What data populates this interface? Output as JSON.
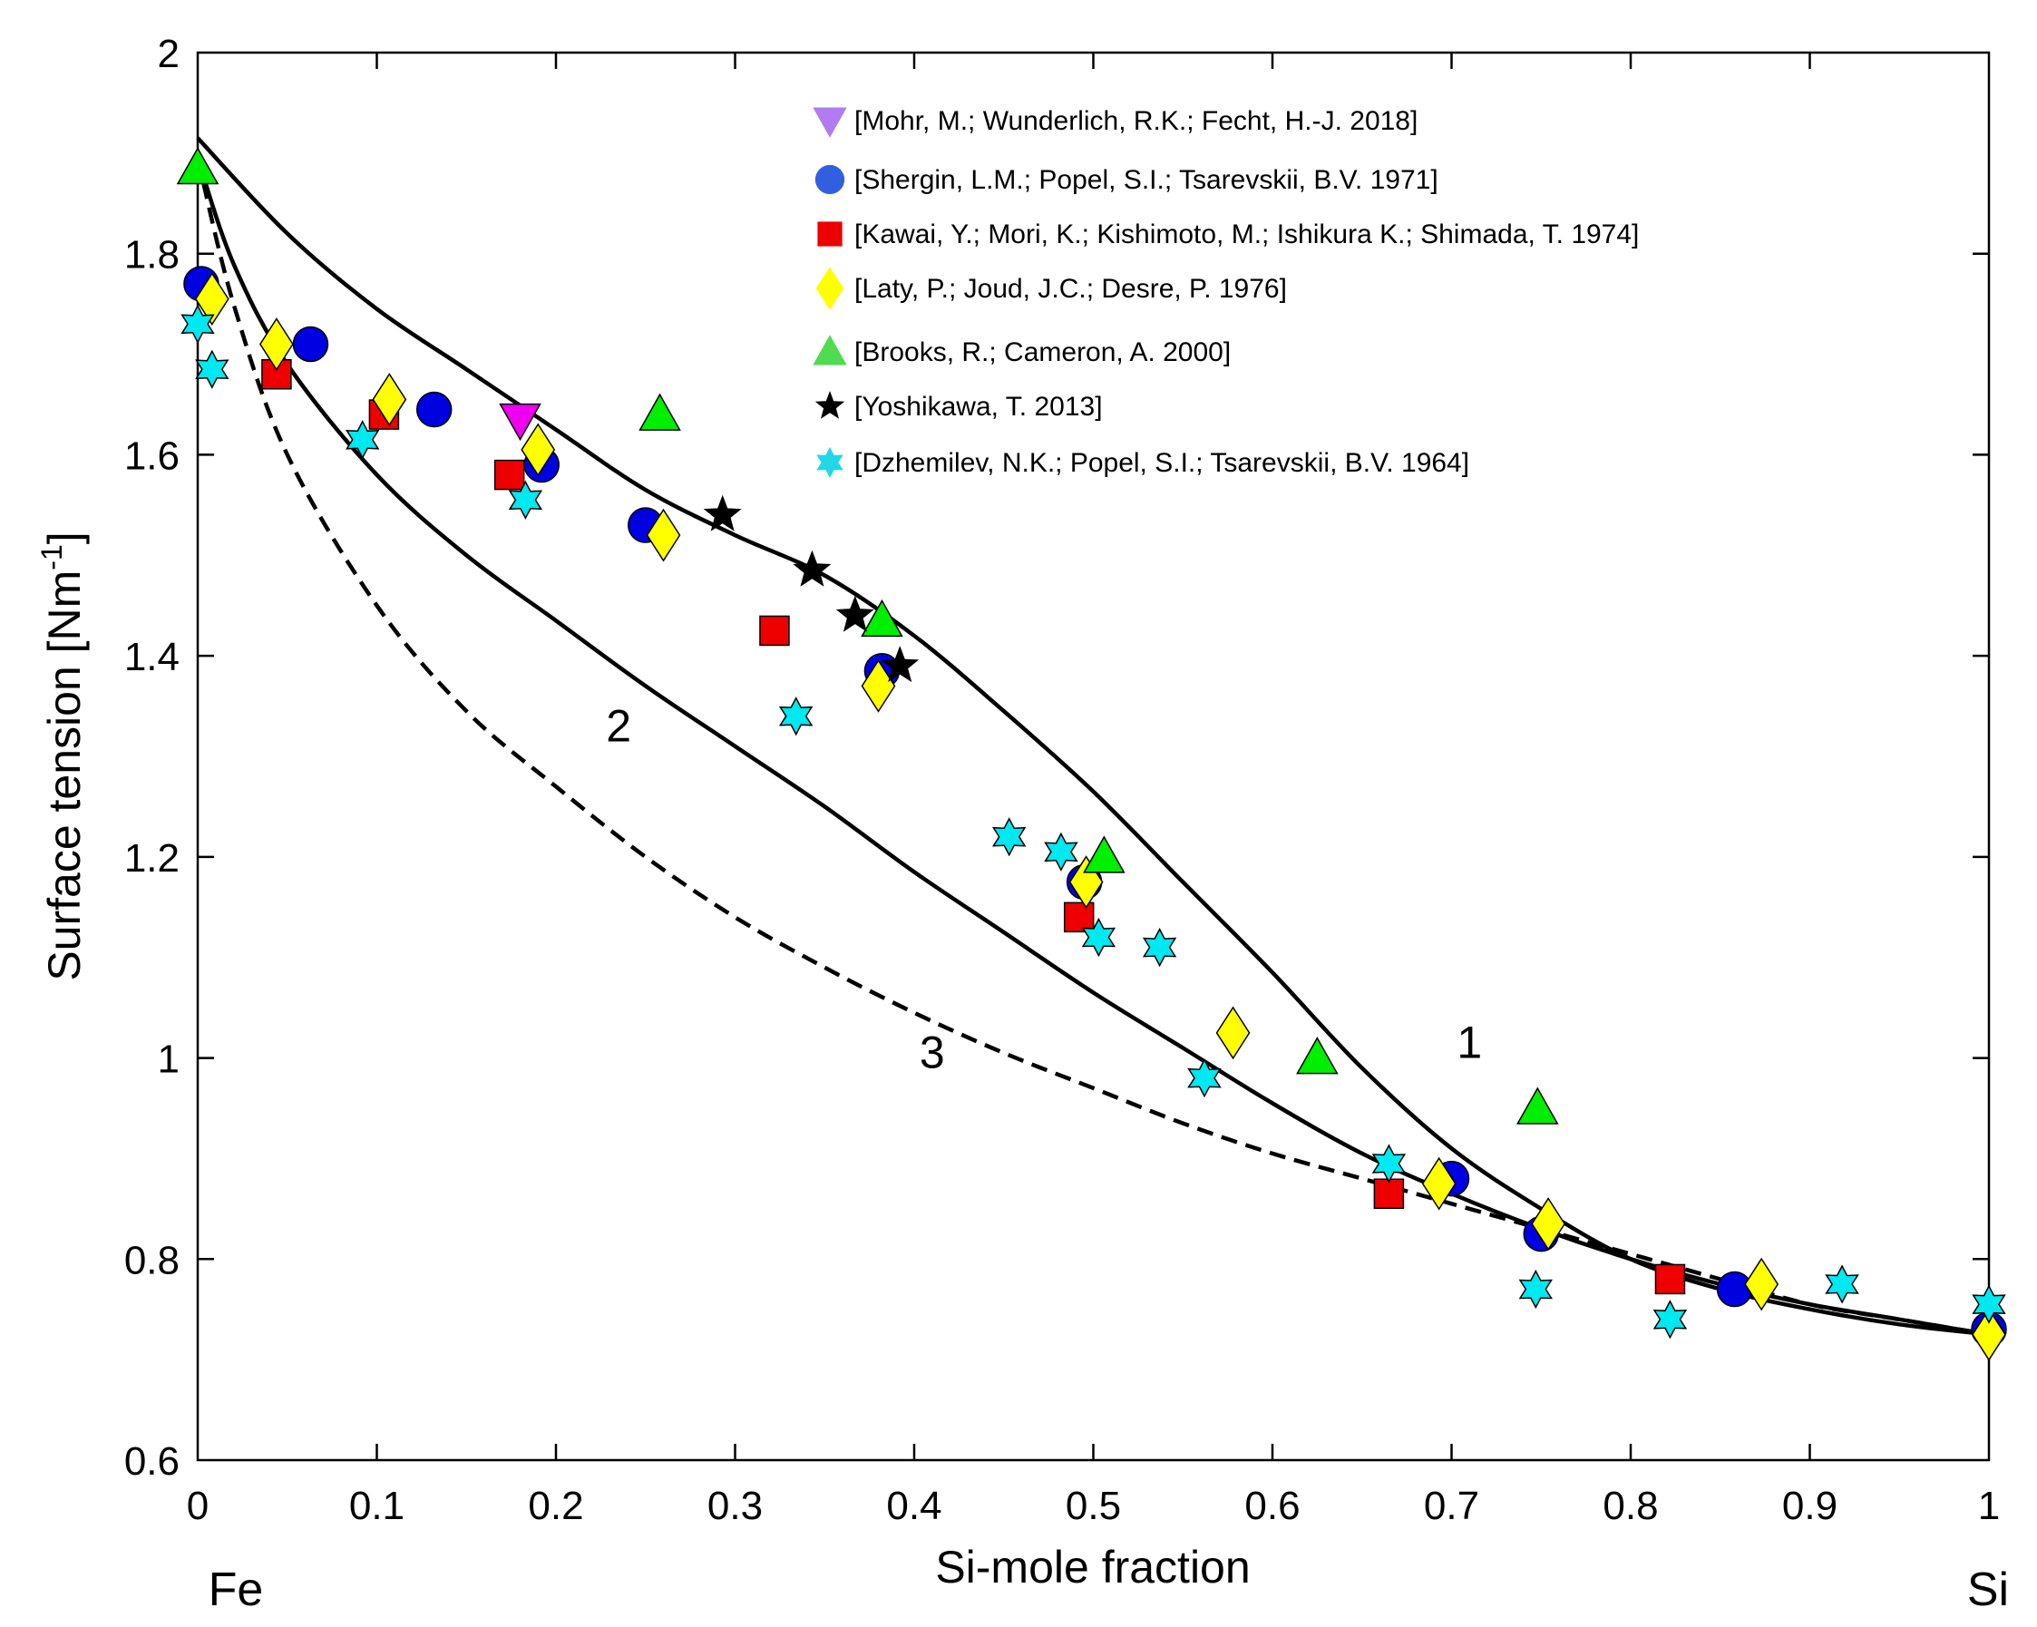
{
  "chart_data": {
    "type": "scatter",
    "xlabel": "Si-mole fraction",
    "ylabel": "Surface tension [Nm",
    "ylabel_sup": "-1",
    "ylabel_close": "]",
    "xlim": [
      0,
      1
    ],
    "ylim": [
      0.6,
      2
    ],
    "x_ticks": [
      0,
      0.1,
      0.2,
      0.3,
      0.4,
      0.5,
      0.6,
      0.7,
      0.8,
      0.9,
      1
    ],
    "x_tick_labels": [
      "0",
      "0.1",
      "0.2",
      "0.3",
      "0.4",
      "0.5",
      "0.6",
      "0.7",
      "0.8",
      "0.9",
      "1"
    ],
    "y_ticks": [
      0.6,
      0.8,
      1,
      1.2,
      1.4,
      1.6,
      1.8,
      2
    ],
    "y_tick_labels": [
      "0.6",
      "0.8",
      "1",
      "1.2",
      "1.4",
      "1.6",
      "1.8",
      "2"
    ],
    "x_end_labels": {
      "left": "Fe",
      "right": "Si"
    },
    "curves": [
      {
        "name": "1",
        "style": "solid",
        "label_at": [
          0.71,
          1.0
        ],
        "points": [
          [
            0,
            1.915
          ],
          [
            0.05,
            1.82
          ],
          [
            0.1,
            1.745
          ],
          [
            0.15,
            1.685
          ],
          [
            0.2,
            1.625
          ],
          [
            0.25,
            1.565
          ],
          [
            0.3,
            1.52
          ],
          [
            0.35,
            1.48
          ],
          [
            0.4,
            1.42
          ],
          [
            0.45,
            1.345
          ],
          [
            0.5,
            1.265
          ],
          [
            0.55,
            1.175
          ],
          [
            0.6,
            1.085
          ],
          [
            0.65,
            0.99
          ],
          [
            0.7,
            0.91
          ],
          [
            0.75,
            0.85
          ],
          [
            0.8,
            0.8
          ],
          [
            0.85,
            0.77
          ],
          [
            0.9,
            0.75
          ],
          [
            0.95,
            0.735
          ],
          [
            1,
            0.725
          ]
        ]
      },
      {
        "name": "2",
        "style": "solid",
        "label_at": [
          0.235,
          1.315
        ],
        "points": [
          [
            0,
            1.895
          ],
          [
            0.02,
            1.79
          ],
          [
            0.05,
            1.69
          ],
          [
            0.1,
            1.58
          ],
          [
            0.15,
            1.5
          ],
          [
            0.2,
            1.435
          ],
          [
            0.25,
            1.37
          ],
          [
            0.3,
            1.31
          ],
          [
            0.35,
            1.25
          ],
          [
            0.4,
            1.185
          ],
          [
            0.45,
            1.125
          ],
          [
            0.5,
            1.065
          ],
          [
            0.55,
            1.01
          ],
          [
            0.6,
            0.955
          ],
          [
            0.65,
            0.905
          ],
          [
            0.7,
            0.865
          ],
          [
            0.75,
            0.83
          ],
          [
            0.8,
            0.8
          ],
          [
            0.85,
            0.775
          ],
          [
            0.9,
            0.755
          ],
          [
            0.95,
            0.74
          ],
          [
            1,
            0.725
          ]
        ]
      },
      {
        "name": "3",
        "style": "dashed",
        "label_at": [
          0.41,
          0.99
        ],
        "points": [
          [
            0,
            1.895
          ],
          [
            0.02,
            1.75
          ],
          [
            0.05,
            1.6
          ],
          [
            0.1,
            1.45
          ],
          [
            0.15,
            1.345
          ],
          [
            0.2,
            1.27
          ],
          [
            0.25,
            1.2
          ],
          [
            0.3,
            1.14
          ],
          [
            0.35,
            1.09
          ],
          [
            0.4,
            1.045
          ],
          [
            0.45,
            1.005
          ],
          [
            0.5,
            0.97
          ],
          [
            0.55,
            0.935
          ],
          [
            0.6,
            0.905
          ],
          [
            0.65,
            0.88
          ],
          [
            0.7,
            0.855
          ],
          [
            0.75,
            0.83
          ],
          [
            0.8,
            0.805
          ],
          [
            0.85,
            0.78
          ],
          [
            0.9,
            0.755
          ],
          [
            0.95,
            0.74
          ],
          [
            1,
            0.725
          ]
        ]
      }
    ],
    "series": [
      {
        "name": "[Mohr, M.; Wunderlich, R.K.; Fecht, H.-J. 2018]",
        "marker": "triangle-down",
        "color": "#ee00ee",
        "legend_color": "#b07cf0",
        "points": [
          [
            0.18,
            1.635
          ]
        ]
      },
      {
        "name": "[Shergin, L.M.; Popel, S.I.; Tsarevskii, B.V. 1971]",
        "marker": "circle",
        "color": "#0000e0",
        "legend_color": "#3060e0",
        "points": [
          [
            0.002,
            1.77
          ],
          [
            0.063,
            1.71
          ],
          [
            0.132,
            1.645
          ],
          [
            0.192,
            1.59
          ],
          [
            0.25,
            1.53
          ],
          [
            0.382,
            1.385
          ],
          [
            0.495,
            1.175
          ],
          [
            0.7,
            0.88
          ],
          [
            0.75,
            0.825
          ],
          [
            0.858,
            0.77
          ],
          [
            1,
            0.73
          ]
        ]
      },
      {
        "name": "[Kawai, Y.; Mori, K.; Kishimoto, M.; Ishikura K.; Shimada, T. 1974]",
        "marker": "square",
        "color": "#ee0000",
        "legend_color": "#ee0000",
        "points": [
          [
            0.044,
            1.68
          ],
          [
            0.104,
            1.64
          ],
          [
            0.174,
            1.58
          ],
          [
            0.322,
            1.425
          ],
          [
            0.492,
            1.14
          ],
          [
            0.665,
            0.865
          ],
          [
            0.822,
            0.78
          ]
        ]
      },
      {
        "name": "[Laty, P.; Joud, J.C.; Desre, P. 1976]",
        "marker": "diamond",
        "color": "#ffff00",
        "legend_color": "#ffff00",
        "points": [
          [
            0.008,
            1.755
          ],
          [
            0.044,
            1.71
          ],
          [
            0.107,
            1.655
          ],
          [
            0.19,
            1.605
          ],
          [
            0.26,
            1.52
          ],
          [
            0.38,
            1.37
          ],
          [
            0.496,
            1.175
          ],
          [
            0.578,
            1.025
          ],
          [
            0.693,
            0.875
          ],
          [
            0.754,
            0.835
          ],
          [
            0.873,
            0.775
          ],
          [
            1,
            0.725
          ]
        ]
      },
      {
        "name": "[Brooks, R.; Cameron, A. 2000]",
        "marker": "triangle-up",
        "color": "#00ee00",
        "legend_color": "#50dc50",
        "points": [
          [
            0,
            1.885
          ],
          [
            0.258,
            1.64
          ],
          [
            0.382,
            1.435
          ],
          [
            0.506,
            1.2
          ],
          [
            0.625,
            1.0
          ],
          [
            0.748,
            0.95
          ]
        ]
      },
      {
        "name": "[Yoshikawa, T. 2013]",
        "marker": "star5",
        "color": "#000000",
        "legend_color": "#000000",
        "points": [
          [
            0.293,
            1.54
          ],
          [
            0.343,
            1.485
          ],
          [
            0.367,
            1.44
          ],
          [
            0.392,
            1.39
          ]
        ]
      },
      {
        "name": "[Dzhemilev, N.K.; Popel, S.I.; Tsarevskii, B.V. 1964]",
        "marker": "star6",
        "color": "#00e8f0",
        "legend_color": "#20d8e8",
        "points": [
          [
            0,
            1.73
          ],
          [
            0.008,
            1.685
          ],
          [
            0.092,
            1.615
          ],
          [
            0.183,
            1.555
          ],
          [
            0.334,
            1.34
          ],
          [
            0.453,
            1.22
          ],
          [
            0.482,
            1.205
          ],
          [
            0.503,
            1.12
          ],
          [
            0.537,
            1.11
          ],
          [
            0.562,
            0.98
          ],
          [
            0.665,
            0.895
          ],
          [
            0.747,
            0.77
          ],
          [
            0.822,
            0.74
          ],
          [
            0.918,
            0.775
          ],
          [
            1,
            0.755
          ]
        ]
      }
    ]
  }
}
